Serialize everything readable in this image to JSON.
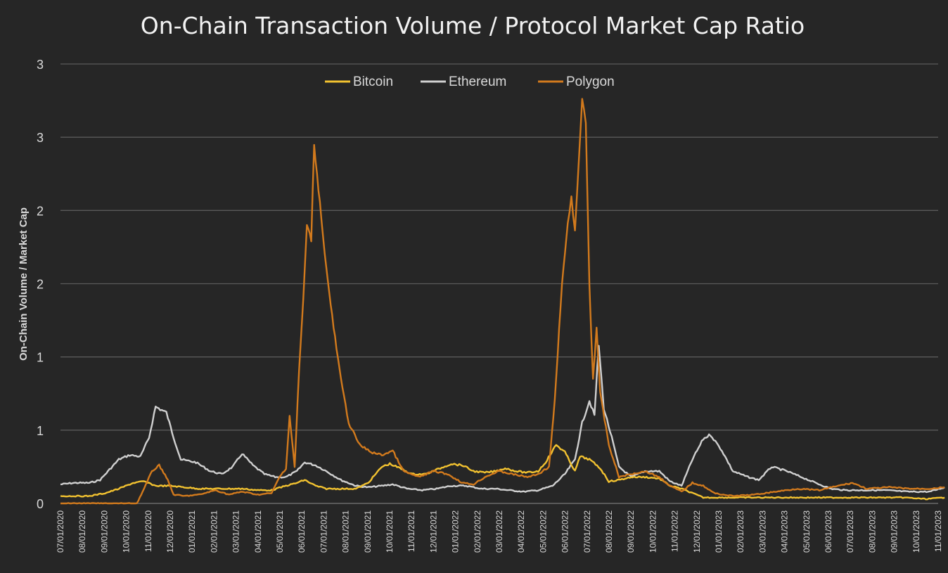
{
  "chart_data": {
    "type": "line",
    "title": "On-Chain Transaction Volume / Protocol Market Cap Ratio",
    "ylabel": "On-Chain Volume / Market Cap",
    "xlabel": "",
    "ylim": [
      0,
      3
    ],
    "y_ticks": [
      0,
      0.5,
      1,
      1.5,
      2,
      2.5,
      3
    ],
    "y_tick_labels": [
      "0",
      "1",
      "1",
      "2",
      "2",
      "3",
      "3"
    ],
    "x_tick_labels": [
      "07/01/2020",
      "08/01/2020",
      "09/01/2020",
      "10/01/2020",
      "11/01/2020",
      "12/01/2020",
      "01/01/2021",
      "02/01/2021",
      "03/01/2021",
      "04/01/2021",
      "05/01/2021",
      "06/01/2021",
      "07/01/2021",
      "08/01/2021",
      "09/01/2021",
      "10/01/2021",
      "11/01/2021",
      "12/01/2021",
      "01/01/2022",
      "02/01/2022",
      "03/01/2022",
      "04/01/2022",
      "05/01/2022",
      "06/01/2022",
      "07/01/2022",
      "08/01/2022",
      "09/01/2022",
      "10/01/2022",
      "11/01/2022",
      "12/01/2022",
      "01/01/2023",
      "02/01/2023",
      "03/01/2023",
      "04/01/2023",
      "05/01/2023",
      "06/01/2023",
      "07/01/2023",
      "08/01/2023",
      "09/01/2023",
      "10/01/2023",
      "11/01/2023"
    ],
    "grid": true,
    "legend_position": "top-center",
    "series": [
      {
        "name": "Bitcoin",
        "color": "#f2c230",
        "points": [
          [
            "2020-07-01",
            0.05
          ],
          [
            "2020-07-20",
            0.05
          ],
          [
            "2020-08-10",
            0.05
          ],
          [
            "2020-09-01",
            0.07
          ],
          [
            "2020-09-20",
            0.1
          ],
          [
            "2020-10-10",
            0.14
          ],
          [
            "2020-10-25",
            0.15
          ],
          [
            "2020-11-10",
            0.12
          ],
          [
            "2020-12-01",
            0.12
          ],
          [
            "2020-12-20",
            0.11
          ],
          [
            "2021-01-10",
            0.1
          ],
          [
            "2021-02-01",
            0.1
          ],
          [
            "2021-02-20",
            0.1
          ],
          [
            "2021-03-10",
            0.1
          ],
          [
            "2021-04-01",
            0.09
          ],
          [
            "2021-04-20",
            0.09
          ],
          [
            "2021-05-10",
            0.12
          ],
          [
            "2021-05-25",
            0.14
          ],
          [
            "2021-06-05",
            0.16
          ],
          [
            "2021-06-20",
            0.12
          ],
          [
            "2021-07-05",
            0.1
          ],
          [
            "2021-07-25",
            0.1
          ],
          [
            "2021-08-15",
            0.1
          ],
          [
            "2021-09-01",
            0.14
          ],
          [
            "2021-09-20",
            0.25
          ],
          [
            "2021-10-01",
            0.27
          ],
          [
            "2021-10-15",
            0.24
          ],
          [
            "2021-11-01",
            0.2
          ],
          [
            "2021-11-20",
            0.2
          ],
          [
            "2021-12-10",
            0.24
          ],
          [
            "2021-12-25",
            0.27
          ],
          [
            "2022-01-10",
            0.26
          ],
          [
            "2022-01-25",
            0.22
          ],
          [
            "2022-02-10",
            0.21
          ],
          [
            "2022-02-25",
            0.22
          ],
          [
            "2022-03-10",
            0.24
          ],
          [
            "2022-03-25",
            0.22
          ],
          [
            "2022-04-10",
            0.21
          ],
          [
            "2022-04-25",
            0.22
          ],
          [
            "2022-05-05",
            0.28
          ],
          [
            "2022-05-20",
            0.4
          ],
          [
            "2022-06-01",
            0.35
          ],
          [
            "2022-06-15",
            0.22
          ],
          [
            "2022-06-22",
            0.32
          ],
          [
            "2022-07-05",
            0.3
          ],
          [
            "2022-07-20",
            0.24
          ],
          [
            "2022-08-01",
            0.15
          ],
          [
            "2022-08-15",
            0.16
          ],
          [
            "2022-09-01",
            0.18
          ],
          [
            "2022-09-20",
            0.18
          ],
          [
            "2022-10-10",
            0.17
          ],
          [
            "2022-10-25",
            0.12
          ],
          [
            "2022-11-10",
            0.1
          ],
          [
            "2022-11-25",
            0.07
          ],
          [
            "2022-12-10",
            0.04
          ],
          [
            "2023-01-10",
            0.04
          ],
          [
            "2023-02-15",
            0.04
          ],
          [
            "2023-03-15",
            0.04
          ],
          [
            "2023-04-15",
            0.04
          ],
          [
            "2023-05-15",
            0.04
          ],
          [
            "2023-06-15",
            0.04
          ],
          [
            "2023-07-15",
            0.04
          ],
          [
            "2023-08-15",
            0.04
          ],
          [
            "2023-09-15",
            0.04
          ],
          [
            "2023-10-15",
            0.03
          ],
          [
            "2023-11-10",
            0.04
          ]
        ]
      },
      {
        "name": "Ethereum",
        "color": "#d0d0d0",
        "points": [
          [
            "2020-07-01",
            0.13
          ],
          [
            "2020-07-20",
            0.14
          ],
          [
            "2020-08-10",
            0.14
          ],
          [
            "2020-08-25",
            0.16
          ],
          [
            "2020-09-05",
            0.22
          ],
          [
            "2020-09-20",
            0.3
          ],
          [
            "2020-10-05",
            0.33
          ],
          [
            "2020-10-20",
            0.32
          ],
          [
            "2020-11-01",
            0.45
          ],
          [
            "2020-11-10",
            0.66
          ],
          [
            "2020-11-25",
            0.62
          ],
          [
            "2020-12-05",
            0.45
          ],
          [
            "2020-12-15",
            0.3
          ],
          [
            "2021-01-05",
            0.28
          ],
          [
            "2021-01-25",
            0.22
          ],
          [
            "2021-02-10",
            0.2
          ],
          [
            "2021-02-25",
            0.25
          ],
          [
            "2021-03-10",
            0.34
          ],
          [
            "2021-03-25",
            0.26
          ],
          [
            "2021-04-10",
            0.2
          ],
          [
            "2021-04-25",
            0.18
          ],
          [
            "2021-05-10",
            0.18
          ],
          [
            "2021-05-25",
            0.22
          ],
          [
            "2021-06-05",
            0.28
          ],
          [
            "2021-06-20",
            0.26
          ],
          [
            "2021-07-05",
            0.22
          ],
          [
            "2021-07-25",
            0.16
          ],
          [
            "2021-08-15",
            0.12
          ],
          [
            "2021-09-01",
            0.11
          ],
          [
            "2021-09-20",
            0.12
          ],
          [
            "2021-10-05",
            0.13
          ],
          [
            "2021-10-25",
            0.1
          ],
          [
            "2021-11-15",
            0.09
          ],
          [
            "2021-12-05",
            0.1
          ],
          [
            "2021-12-25",
            0.12
          ],
          [
            "2022-01-15",
            0.12
          ],
          [
            "2022-02-05",
            0.1
          ],
          [
            "2022-02-25",
            0.1
          ],
          [
            "2022-03-15",
            0.09
          ],
          [
            "2022-04-05",
            0.08
          ],
          [
            "2022-04-25",
            0.09
          ],
          [
            "2022-05-15",
            0.12
          ],
          [
            "2022-06-01",
            0.2
          ],
          [
            "2022-06-15",
            0.3
          ],
          [
            "2022-06-25",
            0.55
          ],
          [
            "2022-07-05",
            0.7
          ],
          [
            "2022-07-12",
            0.6
          ],
          [
            "2022-07-18",
            1.08
          ],
          [
            "2022-07-25",
            0.65
          ],
          [
            "2022-08-05",
            0.45
          ],
          [
            "2022-08-15",
            0.25
          ],
          [
            "2022-09-01",
            0.18
          ],
          [
            "2022-09-20",
            0.22
          ],
          [
            "2022-10-10",
            0.22
          ],
          [
            "2022-10-25",
            0.15
          ],
          [
            "2022-11-10",
            0.12
          ],
          [
            "2022-11-25",
            0.3
          ],
          [
            "2022-12-10",
            0.44
          ],
          [
            "2022-12-20",
            0.47
          ],
          [
            "2023-01-05",
            0.36
          ],
          [
            "2023-01-20",
            0.22
          ],
          [
            "2023-02-10",
            0.18
          ],
          [
            "2023-02-25",
            0.16
          ],
          [
            "2023-03-15",
            0.25
          ],
          [
            "2023-04-05",
            0.22
          ],
          [
            "2023-04-25",
            0.18
          ],
          [
            "2023-05-15",
            0.14
          ],
          [
            "2023-06-05",
            0.1
          ],
          [
            "2023-06-25",
            0.09
          ],
          [
            "2023-07-20",
            0.09
          ],
          [
            "2023-08-20",
            0.09
          ],
          [
            "2023-09-20",
            0.08
          ],
          [
            "2023-10-20",
            0.08
          ],
          [
            "2023-11-10",
            0.11
          ]
        ]
      },
      {
        "name": "Polygon",
        "color": "#d27a1d",
        "points": [
          [
            "2020-07-01",
            0.0
          ],
          [
            "2020-09-15",
            0.0
          ],
          [
            "2020-10-15",
            0.0
          ],
          [
            "2020-10-25",
            0.1
          ],
          [
            "2020-11-05",
            0.22
          ],
          [
            "2020-11-15",
            0.26
          ],
          [
            "2020-11-25",
            0.18
          ],
          [
            "2020-12-05",
            0.06
          ],
          [
            "2020-12-20",
            0.05
          ],
          [
            "2021-01-10",
            0.06
          ],
          [
            "2021-02-01",
            0.09
          ],
          [
            "2021-02-20",
            0.06
          ],
          [
            "2021-03-10",
            0.08
          ],
          [
            "2021-04-01",
            0.06
          ],
          [
            "2021-04-20",
            0.07
          ],
          [
            "2021-05-01",
            0.18
          ],
          [
            "2021-05-10",
            0.24
          ],
          [
            "2021-05-15",
            0.6
          ],
          [
            "2021-05-22",
            0.25
          ],
          [
            "2021-05-28",
            0.9
          ],
          [
            "2021-06-03",
            1.4
          ],
          [
            "2021-06-08",
            1.9
          ],
          [
            "2021-06-14",
            1.8
          ],
          [
            "2021-06-18",
            2.45
          ],
          [
            "2021-06-22",
            2.25
          ],
          [
            "2021-06-28",
            1.95
          ],
          [
            "2021-07-05",
            1.6
          ],
          [
            "2021-07-15",
            1.2
          ],
          [
            "2021-07-25",
            0.85
          ],
          [
            "2021-08-05",
            0.55
          ],
          [
            "2021-08-20",
            0.4
          ],
          [
            "2021-09-05",
            0.35
          ],
          [
            "2021-09-20",
            0.33
          ],
          [
            "2021-10-05",
            0.36
          ],
          [
            "2021-10-20",
            0.22
          ],
          [
            "2021-11-10",
            0.18
          ],
          [
            "2021-12-01",
            0.22
          ],
          [
            "2021-12-20",
            0.2
          ],
          [
            "2022-01-10",
            0.14
          ],
          [
            "2022-01-25",
            0.13
          ],
          [
            "2022-02-10",
            0.18
          ],
          [
            "2022-03-01",
            0.22
          ],
          [
            "2022-03-20",
            0.2
          ],
          [
            "2022-04-10",
            0.18
          ],
          [
            "2022-04-25",
            0.2
          ],
          [
            "2022-05-10",
            0.25
          ],
          [
            "2022-05-18",
            0.7
          ],
          [
            "2022-05-28",
            1.5
          ],
          [
            "2022-06-05",
            1.9
          ],
          [
            "2022-06-10",
            2.1
          ],
          [
            "2022-06-15",
            1.85
          ],
          [
            "2022-06-20",
            2.3
          ],
          [
            "2022-06-25",
            2.77
          ],
          [
            "2022-06-30",
            2.6
          ],
          [
            "2022-07-05",
            1.5
          ],
          [
            "2022-07-10",
            0.85
          ],
          [
            "2022-07-15",
            1.2
          ],
          [
            "2022-07-20",
            0.75
          ],
          [
            "2022-08-01",
            0.4
          ],
          [
            "2022-08-15",
            0.18
          ],
          [
            "2022-09-01",
            0.2
          ],
          [
            "2022-09-20",
            0.22
          ],
          [
            "2022-10-10",
            0.18
          ],
          [
            "2022-10-25",
            0.12
          ],
          [
            "2022-11-10",
            0.08
          ],
          [
            "2022-11-25",
            0.14
          ],
          [
            "2022-12-10",
            0.12
          ],
          [
            "2022-12-25",
            0.07
          ],
          [
            "2023-01-20",
            0.05
          ],
          [
            "2023-02-20",
            0.06
          ],
          [
            "2023-03-20",
            0.08
          ],
          [
            "2023-04-20",
            0.1
          ],
          [
            "2023-05-20",
            0.09
          ],
          [
            "2023-06-15",
            0.12
          ],
          [
            "2023-07-05",
            0.14
          ],
          [
            "2023-07-25",
            0.1
          ],
          [
            "2023-08-25",
            0.11
          ],
          [
            "2023-09-25",
            0.1
          ],
          [
            "2023-10-20",
            0.1
          ],
          [
            "2023-11-10",
            0.11
          ]
        ]
      }
    ]
  }
}
